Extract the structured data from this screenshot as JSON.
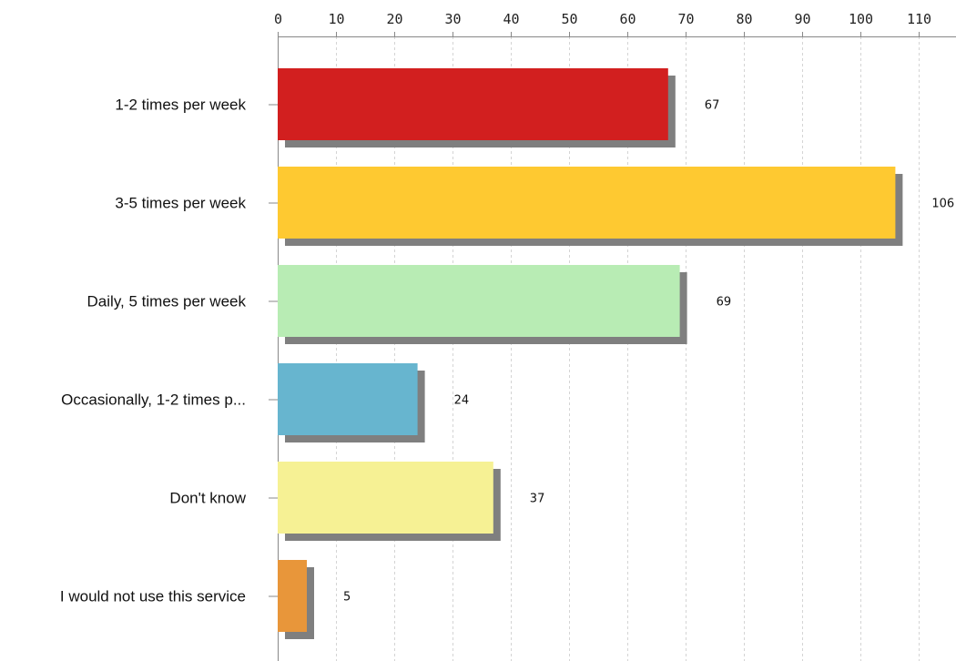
{
  "chart_data": {
    "type": "bar",
    "orientation": "horizontal",
    "title": "",
    "xlabel": "",
    "ylabel": "",
    "categories": [
      "1-2 times per week",
      "3-5 times per week",
      "Daily, 5 times per week",
      "Occasionally, 1-2 times p...",
      "Don't know",
      "I would not use this service"
    ],
    "values": [
      67,
      106,
      69,
      24,
      37,
      5
    ],
    "colors": [
      "#d21f1f",
      "#fec931",
      "#b8ecb4",
      "#67b5cf",
      "#f6f194",
      "#e8963a"
    ],
    "shadow_color": "#7f7f7f",
    "xlim": [
      0,
      110
    ],
    "xticks": [
      0,
      10,
      20,
      30,
      40,
      50,
      60,
      70,
      80,
      90,
      100,
      110
    ],
    "x_axis_position": "top",
    "grid": true,
    "legend": false
  }
}
